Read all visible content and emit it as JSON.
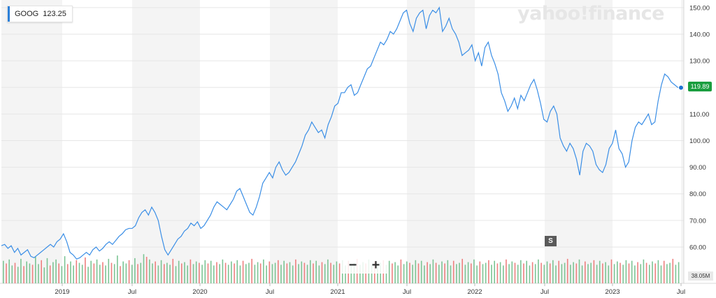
{
  "legend": {
    "ticker": "GOOG",
    "value": "123.25",
    "color": "#2b7fd8"
  },
  "watermark": "yahoo!finance",
  "zoom": {
    "minus": "−",
    "plus": "+"
  },
  "split_marker": "S",
  "last_price_label": "119.89",
  "volume_label": "38.05M",
  "colors": {
    "line": "#3a8ee6",
    "price_tag": "#1a9e3f",
    "vol_up": "#7cc494",
    "vol_down": "#ee7f7f",
    "band": "#f4f4f4"
  },
  "chart_data": {
    "type": "line",
    "title": "",
    "ylim": [
      56,
      151
    ],
    "y_ticks": [
      "150.00",
      "140.00",
      "130.00",
      "120.00",
      "110.00",
      "100.00",
      "90.00",
      "80.00",
      "70.00",
      "60.00"
    ],
    "x_ticks": [
      "2019",
      "Jul",
      "2020",
      "Jul",
      "2021",
      "Jul",
      "2022",
      "Jul",
      "2023",
      "Jul"
    ],
    "series": [
      {
        "values": [
          60.5,
          61,
          59.5,
          60.5,
          58,
          59.5,
          57,
          58,
          59,
          56.5,
          56,
          57,
          58,
          59,
          60,
          61,
          60,
          62,
          63,
          65,
          62,
          58,
          57,
          55.5,
          56,
          57,
          58,
          57,
          59,
          60,
          58.5,
          59.5,
          61,
          62,
          61,
          62.5,
          64,
          65,
          66.5,
          67,
          67,
          68,
          71,
          73,
          74,
          72,
          75,
          73,
          70,
          64,
          59,
          57,
          59,
          61,
          63,
          64,
          66,
          67,
          69,
          68,
          69.5,
          67,
          68,
          70,
          72,
          75,
          77,
          76,
          75,
          74,
          76,
          78,
          81,
          82,
          79,
          76,
          73,
          72,
          75,
          79,
          84,
          86,
          88,
          86,
          90,
          92,
          89,
          87,
          88,
          90,
          92,
          95,
          98,
          102,
          104,
          107,
          105,
          103,
          104,
          101,
          106,
          109,
          113,
          114,
          118,
          118,
          120,
          121,
          117,
          118,
          121,
          124,
          127,
          128,
          131,
          134,
          137,
          136,
          138,
          141,
          140,
          142,
          145,
          148,
          149,
          144,
          141,
          146,
          148,
          149,
          142,
          147,
          149,
          148,
          150,
          141,
          143,
          146,
          142,
          140,
          137,
          132,
          133,
          134,
          136,
          130,
          133,
          128,
          135,
          137,
          132,
          129,
          125,
          118,
          115,
          111,
          113,
          116,
          112,
          117,
          115,
          118,
          121,
          123,
          119,
          114,
          108,
          107,
          111,
          113,
          110,
          101,
          98,
          96,
          99,
          97,
          93,
          87,
          96,
          99,
          98,
          96,
          91,
          89,
          88,
          91,
          97,
          99,
          104,
          97,
          95,
          90,
          92,
          100,
          105,
          107,
          106,
          108,
          110,
          106,
          107,
          115,
          121,
          125,
          124,
          122,
          121,
          120,
          119.89
        ]
      }
    ],
    "volume_unit": "M",
    "volume": [
      34,
      30,
      36,
      27,
      31,
      25,
      37,
      26,
      33,
      30,
      28,
      40,
      29,
      35,
      24,
      38,
      27,
      32,
      36,
      30,
      26,
      41,
      29,
      33,
      27,
      35,
      31,
      28,
      39,
      25,
      34,
      30,
      36,
      28,
      32,
      27,
      37,
      31,
      29,
      42,
      26,
      33,
      30,
      35,
      28,
      38,
      29,
      31,
      44,
      40,
      36,
      30,
      33,
      27,
      35,
      29,
      31,
      28,
      37,
      26,
      34,
      30,
      32,
      27,
      36,
      29,
      33,
      31,
      28,
      35,
      30,
      34,
      27,
      32,
      29,
      36,
      31,
      28,
      33,
      30,
      35,
      27,
      34,
      29,
      31,
      37,
      28,
      32,
      30,
      36,
      27,
      33,
      29,
      31,
      35,
      28,
      34,
      30,
      32,
      27,
      36,
      29,
      33,
      31,
      28,
      35,
      30,
      34,
      27,
      32,
      29,
      36,
      31,
      28,
      33,
      30,
      35,
      27,
      34,
      29,
      31,
      37,
      28,
      32,
      30,
      36,
      27,
      33,
      29,
      31,
      35,
      28,
      34,
      30,
      32,
      27,
      36,
      29,
      33,
      31,
      28,
      35,
      30,
      34,
      27,
      32,
      29,
      36,
      31,
      28,
      33,
      30,
      35,
      27,
      34,
      29,
      31,
      37,
      28,
      32,
      30,
      36,
      27,
      33,
      29,
      31,
      35,
      28,
      34,
      30,
      32,
      27,
      36,
      29,
      33,
      31,
      28,
      35,
      30,
      34,
      27,
      32,
      29,
      36,
      31,
      28,
      33,
      30,
      35,
      27,
      34,
      29,
      31,
      37,
      28,
      32,
      30,
      36,
      27,
      33,
      29,
      31,
      35,
      28,
      34,
      30,
      32,
      27,
      36,
      29,
      33,
      31,
      28,
      35,
      30,
      34,
      27,
      32,
      29,
      36,
      31,
      28,
      33,
      30,
      35,
      27,
      34,
      29,
      31,
      37,
      28,
      32
    ]
  }
}
